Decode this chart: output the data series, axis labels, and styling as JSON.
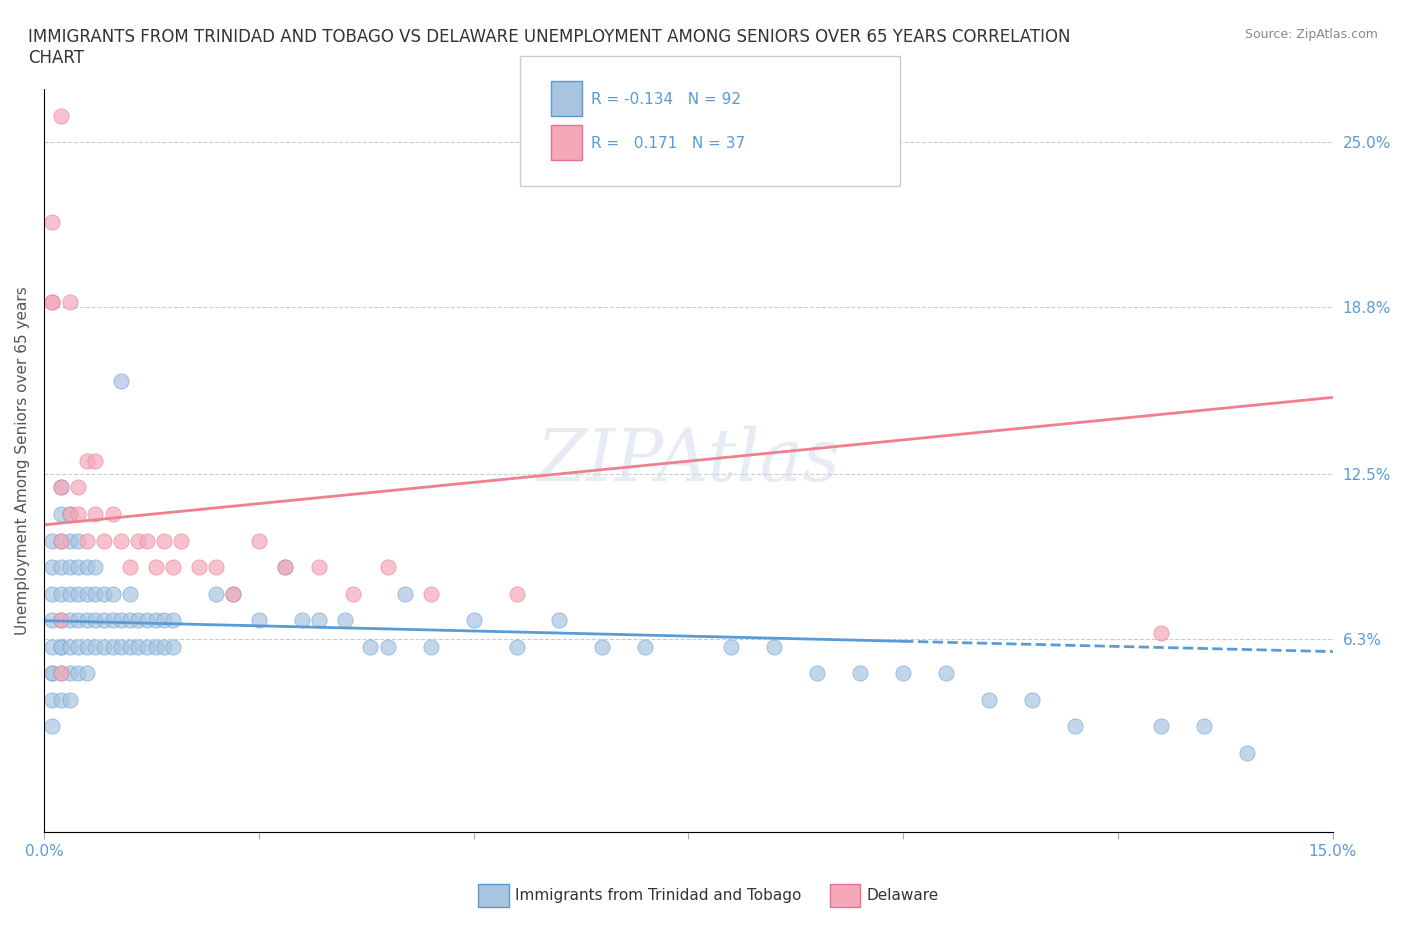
{
  "title": "IMMIGRANTS FROM TRINIDAD AND TOBAGO VS DELAWARE UNEMPLOYMENT AMONG SENIORS OVER 65 YEARS CORRELATION\nCHART",
  "source": "Source: ZipAtlas.com",
  "xlabel": "",
  "ylabel": "Unemployment Among Seniors over 65 years",
  "xlim": [
    0.0,
    0.15
  ],
  "ylim": [
    -0.01,
    0.27
  ],
  "xtick_labels": [
    "0.0%",
    "15.0%"
  ],
  "ytick_positions": [
    0.063,
    0.125,
    0.188,
    0.25
  ],
  "ytick_labels": [
    "6.3%",
    "12.5%",
    "18.8%",
    "25.0%"
  ],
  "blue_R": -0.134,
  "blue_N": 92,
  "pink_R": 0.171,
  "pink_N": 37,
  "blue_color": "#a8c4e0",
  "pink_color": "#f4a8b8",
  "blue_line_color": "#5b9bd5",
  "pink_line_color": "#f4a8b8",
  "watermark": "ZIPAtlas",
  "legend_label_blue": "Immigrants from Trinidad and Tobago",
  "legend_label_pink": "Delaware",
  "blue_scatter_x": [
    0.001,
    0.001,
    0.001,
    0.001,
    0.001,
    0.001,
    0.001,
    0.001,
    0.001,
    0.002,
    0.002,
    0.002,
    0.002,
    0.002,
    0.002,
    0.002,
    0.002,
    0.002,
    0.002,
    0.003,
    0.003,
    0.003,
    0.003,
    0.003,
    0.003,
    0.003,
    0.003,
    0.004,
    0.004,
    0.004,
    0.004,
    0.004,
    0.004,
    0.005,
    0.005,
    0.005,
    0.005,
    0.005,
    0.006,
    0.006,
    0.006,
    0.006,
    0.007,
    0.007,
    0.007,
    0.008,
    0.008,
    0.008,
    0.009,
    0.009,
    0.009,
    0.01,
    0.01,
    0.01,
    0.011,
    0.011,
    0.012,
    0.012,
    0.013,
    0.013,
    0.014,
    0.014,
    0.015,
    0.015,
    0.02,
    0.022,
    0.025,
    0.028,
    0.03,
    0.032,
    0.035,
    0.038,
    0.04,
    0.042,
    0.045,
    0.05,
    0.055,
    0.06,
    0.065,
    0.07,
    0.08,
    0.085,
    0.09,
    0.095,
    0.1,
    0.105,
    0.11,
    0.115,
    0.12,
    0.13,
    0.135,
    0.14
  ],
  "blue_scatter_y": [
    0.08,
    0.07,
    0.06,
    0.05,
    0.09,
    0.1,
    0.04,
    0.03,
    0.05,
    0.12,
    0.11,
    0.09,
    0.08,
    0.07,
    0.06,
    0.05,
    0.04,
    0.1,
    0.06,
    0.11,
    0.1,
    0.09,
    0.08,
    0.07,
    0.06,
    0.05,
    0.04,
    0.1,
    0.09,
    0.08,
    0.07,
    0.06,
    0.05,
    0.09,
    0.08,
    0.07,
    0.06,
    0.05,
    0.09,
    0.08,
    0.07,
    0.06,
    0.08,
    0.07,
    0.06,
    0.08,
    0.07,
    0.06,
    0.16,
    0.07,
    0.06,
    0.08,
    0.07,
    0.06,
    0.07,
    0.06,
    0.07,
    0.06,
    0.07,
    0.06,
    0.07,
    0.06,
    0.07,
    0.06,
    0.08,
    0.08,
    0.07,
    0.09,
    0.07,
    0.07,
    0.07,
    0.06,
    0.06,
    0.08,
    0.06,
    0.07,
    0.06,
    0.07,
    0.06,
    0.06,
    0.06,
    0.06,
    0.05,
    0.05,
    0.05,
    0.05,
    0.04,
    0.04,
    0.03,
    0.03,
    0.03,
    0.02
  ],
  "pink_scatter_x": [
    0.001,
    0.001,
    0.001,
    0.002,
    0.002,
    0.002,
    0.002,
    0.002,
    0.003,
    0.003,
    0.004,
    0.004,
    0.005,
    0.005,
    0.006,
    0.006,
    0.007,
    0.008,
    0.009,
    0.01,
    0.011,
    0.012,
    0.013,
    0.014,
    0.015,
    0.016,
    0.018,
    0.02,
    0.022,
    0.025,
    0.028,
    0.032,
    0.036,
    0.04,
    0.045,
    0.055,
    0.13
  ],
  "pink_scatter_y": [
    0.22,
    0.19,
    0.19,
    0.26,
    0.07,
    0.05,
    0.1,
    0.12,
    0.19,
    0.11,
    0.12,
    0.11,
    0.1,
    0.13,
    0.11,
    0.13,
    0.1,
    0.11,
    0.1,
    0.09,
    0.1,
    0.1,
    0.09,
    0.1,
    0.09,
    0.1,
    0.09,
    0.09,
    0.08,
    0.1,
    0.09,
    0.09,
    0.08,
    0.09,
    0.08,
    0.08,
    0.065
  ]
}
